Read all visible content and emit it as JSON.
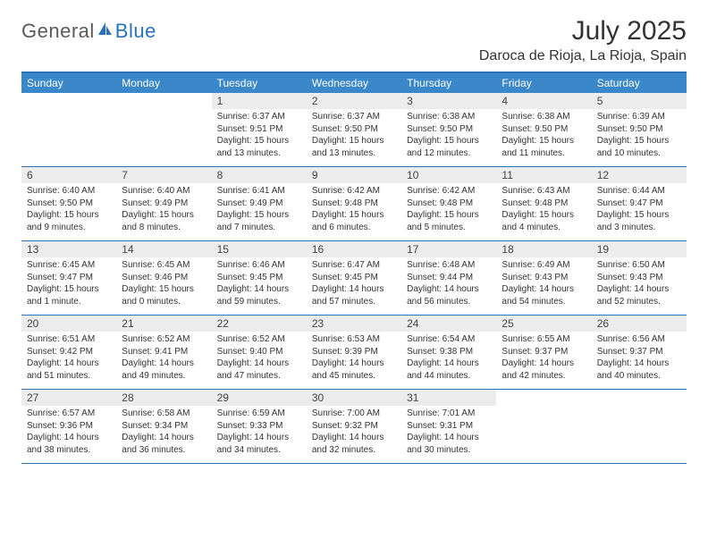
{
  "logo": {
    "textGeneral": "General",
    "textBlue": "Blue"
  },
  "title": "July 2025",
  "location": "Daroca de Rioja, La Rioja, Spain",
  "colors": {
    "headerBg": "#3a87c9",
    "headerBorder": "#2a73b8",
    "dayNumBg": "#ececec",
    "logoGray": "#5a5a5a",
    "logoBlue": "#2a73b8"
  },
  "dayNames": [
    "Sunday",
    "Monday",
    "Tuesday",
    "Wednesday",
    "Thursday",
    "Friday",
    "Saturday"
  ],
  "weeks": [
    [
      null,
      null,
      {
        "n": "1",
        "sr": "6:37 AM",
        "ss": "9:51 PM",
        "dl": "15 hours and 13 minutes."
      },
      {
        "n": "2",
        "sr": "6:37 AM",
        "ss": "9:50 PM",
        "dl": "15 hours and 13 minutes."
      },
      {
        "n": "3",
        "sr": "6:38 AM",
        "ss": "9:50 PM",
        "dl": "15 hours and 12 minutes."
      },
      {
        "n": "4",
        "sr": "6:38 AM",
        "ss": "9:50 PM",
        "dl": "15 hours and 11 minutes."
      },
      {
        "n": "5",
        "sr": "6:39 AM",
        "ss": "9:50 PM",
        "dl": "15 hours and 10 minutes."
      }
    ],
    [
      {
        "n": "6",
        "sr": "6:40 AM",
        "ss": "9:50 PM",
        "dl": "15 hours and 9 minutes."
      },
      {
        "n": "7",
        "sr": "6:40 AM",
        "ss": "9:49 PM",
        "dl": "15 hours and 8 minutes."
      },
      {
        "n": "8",
        "sr": "6:41 AM",
        "ss": "9:49 PM",
        "dl": "15 hours and 7 minutes."
      },
      {
        "n": "9",
        "sr": "6:42 AM",
        "ss": "9:48 PM",
        "dl": "15 hours and 6 minutes."
      },
      {
        "n": "10",
        "sr": "6:42 AM",
        "ss": "9:48 PM",
        "dl": "15 hours and 5 minutes."
      },
      {
        "n": "11",
        "sr": "6:43 AM",
        "ss": "9:48 PM",
        "dl": "15 hours and 4 minutes."
      },
      {
        "n": "12",
        "sr": "6:44 AM",
        "ss": "9:47 PM",
        "dl": "15 hours and 3 minutes."
      }
    ],
    [
      {
        "n": "13",
        "sr": "6:45 AM",
        "ss": "9:47 PM",
        "dl": "15 hours and 1 minute."
      },
      {
        "n": "14",
        "sr": "6:45 AM",
        "ss": "9:46 PM",
        "dl": "15 hours and 0 minutes."
      },
      {
        "n": "15",
        "sr": "6:46 AM",
        "ss": "9:45 PM",
        "dl": "14 hours and 59 minutes."
      },
      {
        "n": "16",
        "sr": "6:47 AM",
        "ss": "9:45 PM",
        "dl": "14 hours and 57 minutes."
      },
      {
        "n": "17",
        "sr": "6:48 AM",
        "ss": "9:44 PM",
        "dl": "14 hours and 56 minutes."
      },
      {
        "n": "18",
        "sr": "6:49 AM",
        "ss": "9:43 PM",
        "dl": "14 hours and 54 minutes."
      },
      {
        "n": "19",
        "sr": "6:50 AM",
        "ss": "9:43 PM",
        "dl": "14 hours and 52 minutes."
      }
    ],
    [
      {
        "n": "20",
        "sr": "6:51 AM",
        "ss": "9:42 PM",
        "dl": "14 hours and 51 minutes."
      },
      {
        "n": "21",
        "sr": "6:52 AM",
        "ss": "9:41 PM",
        "dl": "14 hours and 49 minutes."
      },
      {
        "n": "22",
        "sr": "6:52 AM",
        "ss": "9:40 PM",
        "dl": "14 hours and 47 minutes."
      },
      {
        "n": "23",
        "sr": "6:53 AM",
        "ss": "9:39 PM",
        "dl": "14 hours and 45 minutes."
      },
      {
        "n": "24",
        "sr": "6:54 AM",
        "ss": "9:38 PM",
        "dl": "14 hours and 44 minutes."
      },
      {
        "n": "25",
        "sr": "6:55 AM",
        "ss": "9:37 PM",
        "dl": "14 hours and 42 minutes."
      },
      {
        "n": "26",
        "sr": "6:56 AM",
        "ss": "9:37 PM",
        "dl": "14 hours and 40 minutes."
      }
    ],
    [
      {
        "n": "27",
        "sr": "6:57 AM",
        "ss": "9:36 PM",
        "dl": "14 hours and 38 minutes."
      },
      {
        "n": "28",
        "sr": "6:58 AM",
        "ss": "9:34 PM",
        "dl": "14 hours and 36 minutes."
      },
      {
        "n": "29",
        "sr": "6:59 AM",
        "ss": "9:33 PM",
        "dl": "14 hours and 34 minutes."
      },
      {
        "n": "30",
        "sr": "7:00 AM",
        "ss": "9:32 PM",
        "dl": "14 hours and 32 minutes."
      },
      {
        "n": "31",
        "sr": "7:01 AM",
        "ss": "9:31 PM",
        "dl": "14 hours and 30 minutes."
      },
      null,
      null
    ]
  ],
  "labels": {
    "sunrise": "Sunrise:",
    "sunset": "Sunset:",
    "daylight": "Daylight:"
  }
}
